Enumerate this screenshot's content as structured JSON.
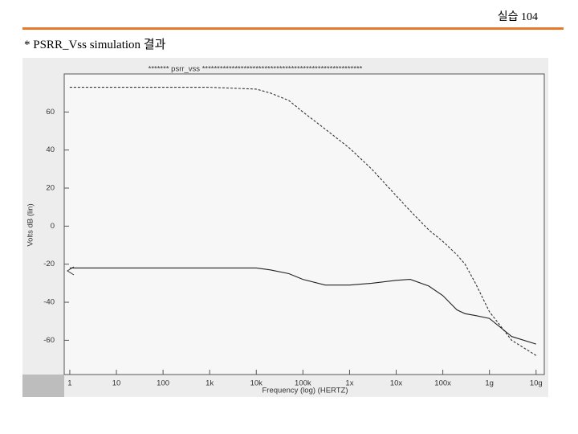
{
  "header": {
    "page": "실습 104",
    "heading": "* PSRR_Vss  simulation 결과"
  },
  "chart_data": {
    "type": "line",
    "title": "******* psrr_vss ******************************************************",
    "xlabel": "Frequency (log) (HERTZ)",
    "ylabel": "Volts dB (lin)",
    "xscale": "log",
    "xlim": [
      0.76,
      15000000000
    ],
    "ylim": [
      -78,
      80
    ],
    "xticks": [
      1,
      10,
      100,
      {
        "value": 1000,
        "label": "1k"
      },
      {
        "value": 10000,
        "label": "10k"
      },
      {
        "value": 100000,
        "label": "100k"
      },
      {
        "value": 1000000,
        "label": "1x"
      },
      {
        "value": 10000000,
        "label": "10x"
      },
      {
        "value": 100000000,
        "label": "100x"
      },
      {
        "value": 1000000000,
        "label": "1g"
      },
      {
        "value": 10000000000,
        "label": "10g"
      }
    ],
    "yticks": [
      60,
      40,
      20,
      0,
      -20,
      -40,
      -60
    ],
    "x": [
      1,
      10,
      100,
      1000,
      10000,
      20000,
      50000,
      100000,
      300000,
      1000000,
      3000000,
      10000000,
      20000000,
      50000000,
      100000000,
      200000000,
      300000000,
      500000000,
      1000000000,
      3000000000,
      10000000000
    ],
    "series": [
      {
        "color": "#333333",
        "dash": true,
        "values": [
          73,
          73,
          73,
          73,
          72,
          70,
          66,
          60,
          51,
          41,
          30,
          16,
          8,
          -2,
          -8,
          -15,
          -20,
          -30,
          -45,
          -60,
          -68
        ]
      },
      {
        "color": "#222222",
        "dash": false,
        "values": [
          -22,
          -22,
          -22,
          -22,
          -22,
          -23,
          -25,
          -28,
          -31,
          -31,
          -30,
          -28.5,
          -28,
          -31.5,
          -36.5,
          -44,
          -46,
          -47,
          -48.5,
          -58,
          -62
        ]
      }
    ]
  }
}
